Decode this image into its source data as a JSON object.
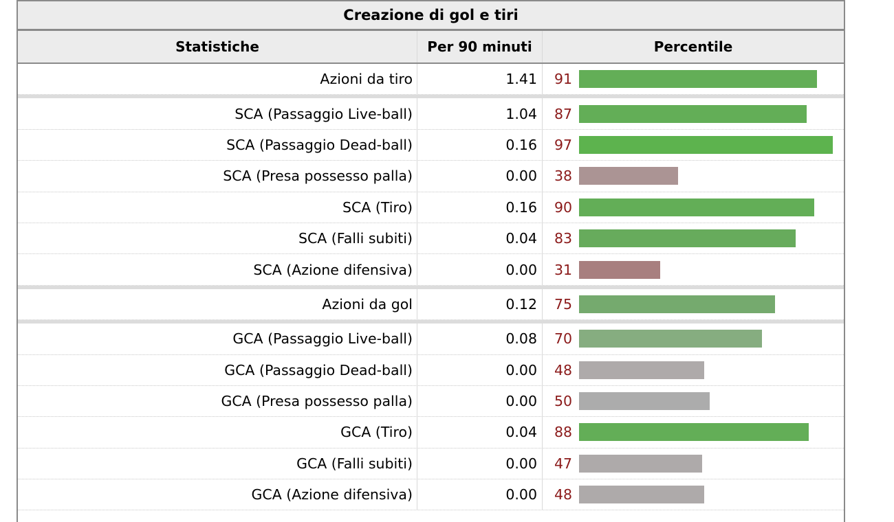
{
  "table": {
    "caption": "Creazione di gol e tiri",
    "headers": {
      "stat": "Statistiche",
      "per90": "Per 90 minuti",
      "percentile": "Percentile"
    },
    "rows": [
      {
        "stat": "Azioni da tiro",
        "per90": "1.41",
        "percentile": "91",
        "group_start": false,
        "color": "#63ae57"
      },
      {
        "stat": "SCA (Passaggio Live-ball)",
        "per90": "1.04",
        "percentile": "87",
        "group_start": true,
        "color": "#63ae57"
      },
      {
        "stat": "SCA (Passaggio Dead-ball)",
        "per90": "0.16",
        "percentile": "97",
        "group_start": false,
        "color": "#5db34e"
      },
      {
        "stat": "SCA (Presa possesso palla)",
        "per90": "0.00",
        "percentile": "38",
        "group_start": false,
        "color": "#ab9494"
      },
      {
        "stat": "SCA (Tiro)",
        "per90": "0.16",
        "percentile": "90",
        "group_start": false,
        "color": "#63ae57"
      },
      {
        "stat": "SCA (Falli subiti)",
        "per90": "0.04",
        "percentile": "83",
        "group_start": false,
        "color": "#67ab5c"
      },
      {
        "stat": "SCA (Azione difensiva)",
        "per90": "0.00",
        "percentile": "31",
        "group_start": false,
        "color": "#a87f7f"
      },
      {
        "stat": "Azioni da gol",
        "per90": "0.12",
        "percentile": "75",
        "group_start": true,
        "color": "#75aa6e"
      },
      {
        "stat": "GCA (Passaggio Live-ball)",
        "per90": "0.08",
        "percentile": "70",
        "group_start": true,
        "color": "#86ad80"
      },
      {
        "stat": "GCA (Passaggio Dead-ball)",
        "per90": "0.00",
        "percentile": "48",
        "group_start": false,
        "color": "#aeaaaa"
      },
      {
        "stat": "GCA (Presa possesso palla)",
        "per90": "0.00",
        "percentile": "50",
        "group_start": false,
        "color": "#acacac"
      },
      {
        "stat": "GCA (Tiro)",
        "per90": "0.04",
        "percentile": "88",
        "group_start": false,
        "color": "#63ae57"
      },
      {
        "stat": "GCA (Falli subiti)",
        "per90": "0.00",
        "percentile": "47",
        "group_start": false,
        "color": "#aeaaaa"
      },
      {
        "stat": "GCA (Azione difensiva)",
        "per90": "0.00",
        "percentile": "48",
        "group_start": false,
        "color": "#aeaaaa"
      }
    ]
  }
}
